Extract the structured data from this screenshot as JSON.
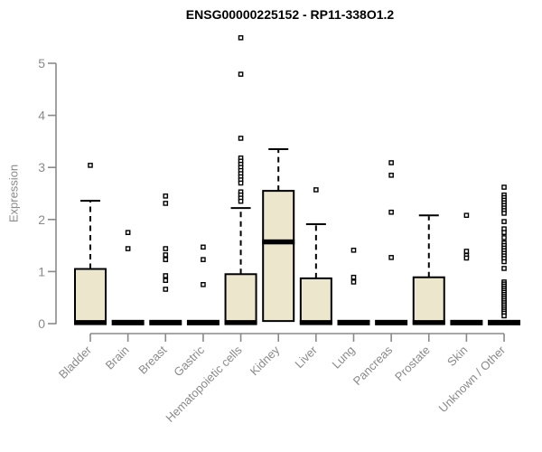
{
  "window": {
    "title": "ENSG00000225152 - RP11-338O1.2"
  },
  "colors": {
    "background": "#ffffff",
    "box_fill": "#ece6cc",
    "box_border": "#000000",
    "median": "#000000",
    "axis": "#8a8a8a",
    "tick_label": "#8a8a8a",
    "title_text": "#000000",
    "outlier": "#000000"
  },
  "chart_data": {
    "type": "boxplot",
    "title": "ENSG00000225152 - RP11-338O1.2",
    "xlabel": "",
    "ylabel": "Expression",
    "ylim": [
      0,
      5
    ],
    "yticks": [
      0,
      1,
      2,
      3,
      4,
      5
    ],
    "grid": "off",
    "legend": "none",
    "categories": [
      "Bladder",
      "Brain",
      "Breast",
      "Gastric",
      "Hematopoietic cells",
      "Kidney",
      "Liver",
      "Lung",
      "Pancreas",
      "Prostate",
      "Skin",
      "Unknown / Other"
    ],
    "series": [
      {
        "name": "Bladder",
        "q1": 0,
        "median": 0.02,
        "q3": 1.05,
        "whisker_low": 0,
        "whisker_high": 2.36,
        "outliers": [
          3.04
        ]
      },
      {
        "name": "Brain",
        "q1": 0,
        "median": 0.02,
        "q3": 0,
        "whisker_low": 0,
        "whisker_high": 0,
        "outliers": [
          1.75,
          1.44
        ]
      },
      {
        "name": "Breast",
        "q1": 0,
        "median": 0.02,
        "q3": 0,
        "whisker_low": 0,
        "whisker_high": 0,
        "outliers": [
          2.45,
          2.31,
          1.44,
          1.32,
          1.23,
          0.92,
          0.83,
          0.66
        ]
      },
      {
        "name": "Gastric",
        "q1": 0,
        "median": 0.02,
        "q3": 0,
        "whisker_low": 0,
        "whisker_high": 0,
        "outliers": [
          1.47,
          1.23,
          0.75
        ]
      },
      {
        "name": "Hematopoietic cells",
        "q1": 0,
        "median": 0.02,
        "q3": 0.95,
        "whisker_low": 0,
        "whisker_high": 2.22,
        "outliers": [
          5.49,
          4.79,
          3.56,
          3.18,
          3.12,
          3.06,
          3.0,
          2.94,
          2.88,
          2.82,
          2.76,
          2.7,
          2.53,
          2.47,
          2.41,
          2.35
        ]
      },
      {
        "name": "Kidney",
        "q1": 0.05,
        "median": 1.57,
        "q3": 2.55,
        "whisker_low": 0.05,
        "whisker_high": 3.35,
        "outliers": []
      },
      {
        "name": "Liver",
        "q1": 0,
        "median": 0.02,
        "q3": 0.87,
        "whisker_low": 0,
        "whisker_high": 1.91,
        "outliers": [
          2.57
        ]
      },
      {
        "name": "Lung",
        "q1": 0,
        "median": 0.02,
        "q3": 0,
        "whisker_low": 0,
        "whisker_high": 0,
        "outliers": [
          1.41,
          0.89,
          0.8
        ]
      },
      {
        "name": "Pancreas",
        "q1": 0,
        "median": 0.02,
        "q3": 0,
        "whisker_low": 0,
        "whisker_high": 0,
        "outliers": [
          3.09,
          2.85,
          2.14,
          1.27
        ]
      },
      {
        "name": "Prostate",
        "q1": 0,
        "median": 0.02,
        "q3": 0.89,
        "whisker_low": 0,
        "whisker_high": 2.08,
        "outliers": []
      },
      {
        "name": "Skin",
        "q1": 0,
        "median": 0.02,
        "q3": 0,
        "whisker_low": 0,
        "whisker_high": 0,
        "outliers": [
          2.08,
          1.39,
          1.31,
          1.26
        ]
      },
      {
        "name": "Unknown / Other",
        "q1": 0,
        "median": 0.02,
        "q3": 0,
        "whisker_low": 0,
        "whisker_high": 0,
        "outliers": [
          2.62,
          2.47,
          2.42,
          2.37,
          2.32,
          2.27,
          2.22,
          2.17,
          2.12,
          1.96,
          1.82,
          1.75,
          1.65,
          1.55,
          1.5,
          1.45,
          1.4,
          1.35,
          1.3,
          1.25,
          1.19,
          1.06,
          0.8,
          0.76,
          0.72,
          0.68,
          0.64,
          0.6,
          0.56,
          0.52,
          0.48,
          0.44,
          0.4,
          0.36,
          0.32,
          0.28,
          0.24,
          0.2,
          0.15
        ]
      }
    ]
  }
}
